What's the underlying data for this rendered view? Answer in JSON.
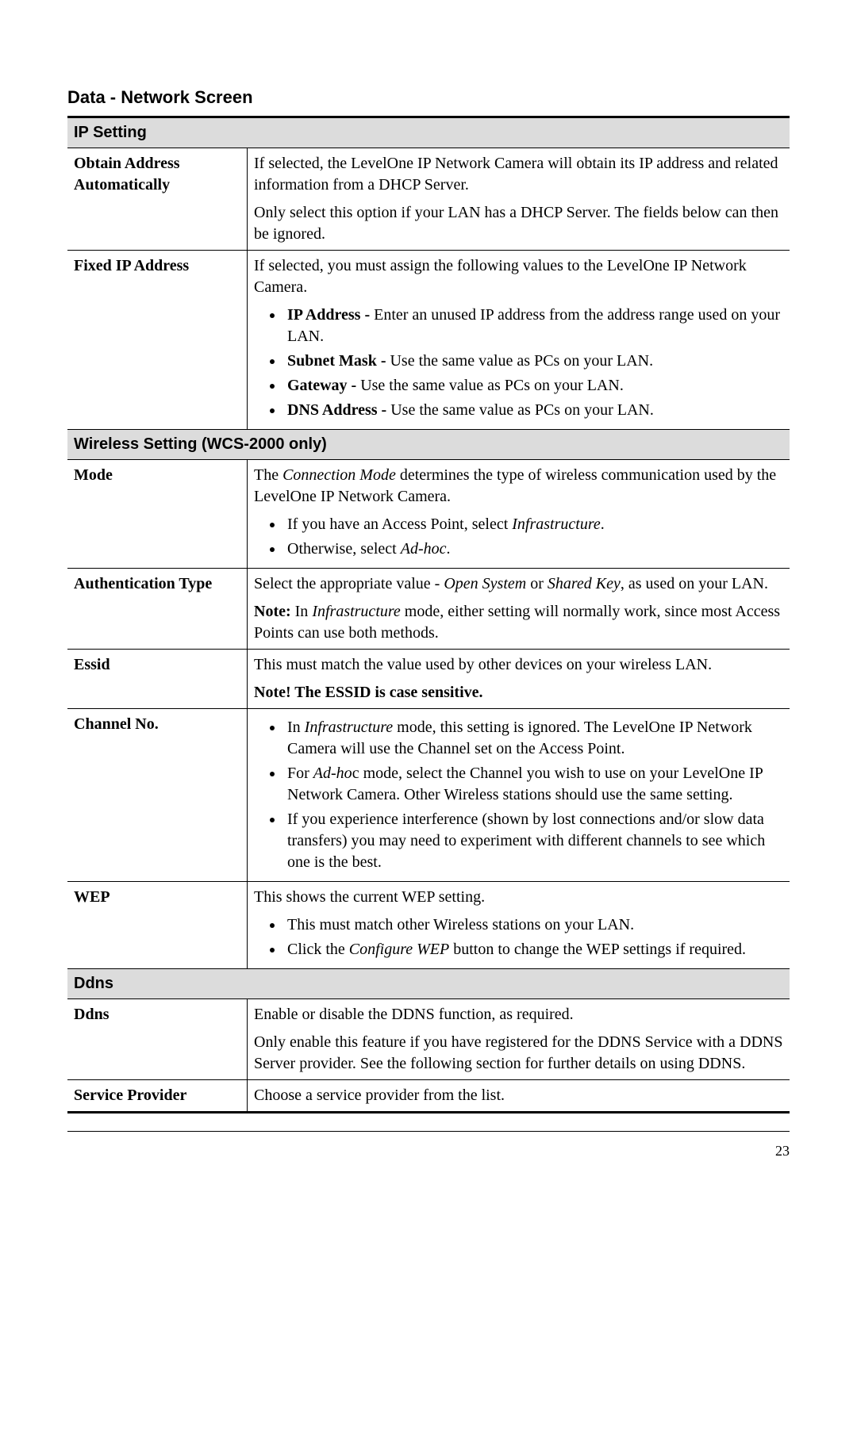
{
  "title": "Data - Network Screen",
  "pageNumber": "23",
  "sections": {
    "ip_setting": {
      "header": "IP Setting",
      "rows": {
        "obtain": {
          "label_1": "Obtain Address",
          "label_2": "Automatically",
          "p1": "If selected, the LevelOne IP Network Camera will obtain its IP address and related information from a DHCP Server.",
          "p2": "Only select this option if your LAN has a DHCP Server. The fields below can then be ignored."
        },
        "fixed": {
          "label": "Fixed IP Address",
          "p1": "If selected, you must assign the following values to the LevelOne IP Network Camera.",
          "b1_bold": "IP Address -",
          "b1_rest": " Enter an unused IP address from the address range used on your LAN.",
          "b2_bold": "Subnet Mask -",
          "b2_rest": " Use the same value as PCs on your LAN.",
          "b3_bold": "Gateway -",
          "b3_rest": " Use the same value as PCs on your LAN.",
          "b4_bold": "DNS Address -",
          "b4_rest": " Use the same value as PCs on your LAN."
        }
      }
    },
    "wireless": {
      "header": "Wireless Setting (WCS-2000 only)",
      "rows": {
        "mode": {
          "label": "Mode",
          "p1_pre": "The ",
          "p1_it": "Connection Mode",
          "p1_post": " determines the type of wireless communication used by the LevelOne IP Network Camera.",
          "b1_pre": "If you have an Access Point, select ",
          "b1_it": "Infrastructure",
          "b1_post": ".",
          "b2_pre": "Otherwise, select ",
          "b2_it": "Ad-hoc",
          "b2_post": "."
        },
        "auth": {
          "label": "Authentication Type",
          "p1_pre": "Select the appropriate value - ",
          "p1_it1": "Open System",
          "p1_mid": " or ",
          "p1_it2": "Shared Key",
          "p1_post": ", as used on your LAN.",
          "p2_bold": "Note:",
          "p2_pre": " In ",
          "p2_it": "Infrastructure",
          "p2_post": " mode, either setting will normally work, since most Access Points can use both methods."
        },
        "essid": {
          "label": "Essid",
          "p1": "This must match the value used by other devices on your wireless LAN.",
          "p2_bold": "Note! The ESSID is case sensitive."
        },
        "channel": {
          "label": "Channel No.",
          "b1_pre": "In ",
          "b1_it": "Infrastructure",
          "b1_post": " mode, this setting is ignored. The LevelOne IP Network Camera will use the Channel set on the Access Point.",
          "b2_pre": "For ",
          "b2_it": "Ad-ho",
          "b2_post": "c mode, select the Channel you wish to use on your LevelOne IP Network Camera. Other Wireless stations should use the same setting.",
          "b3": "If you experience interference (shown by lost connections and/or slow data transfers) you may need to experiment with different channels to see which one is the best."
        },
        "wep": {
          "label": "WEP",
          "p1": "This shows the current WEP setting.",
          "b1": "This must match other Wireless stations on your LAN.",
          "b2_pre": "Click the ",
          "b2_it": "Configure WEP",
          "b2_post": " button to change the WEP settings if required."
        }
      }
    },
    "ddns": {
      "header": "Ddns",
      "rows": {
        "ddns": {
          "label": "Ddns",
          "p1": "Enable or disable the DDNS function, as required.",
          "p2": "Only enable this feature if you have registered for the DDNS Service with a DDNS Server provider. See the following section for further details on using DDNS."
        },
        "provider": {
          "label": "Service Provider",
          "p1": "Choose a service provider from the list."
        }
      }
    }
  }
}
